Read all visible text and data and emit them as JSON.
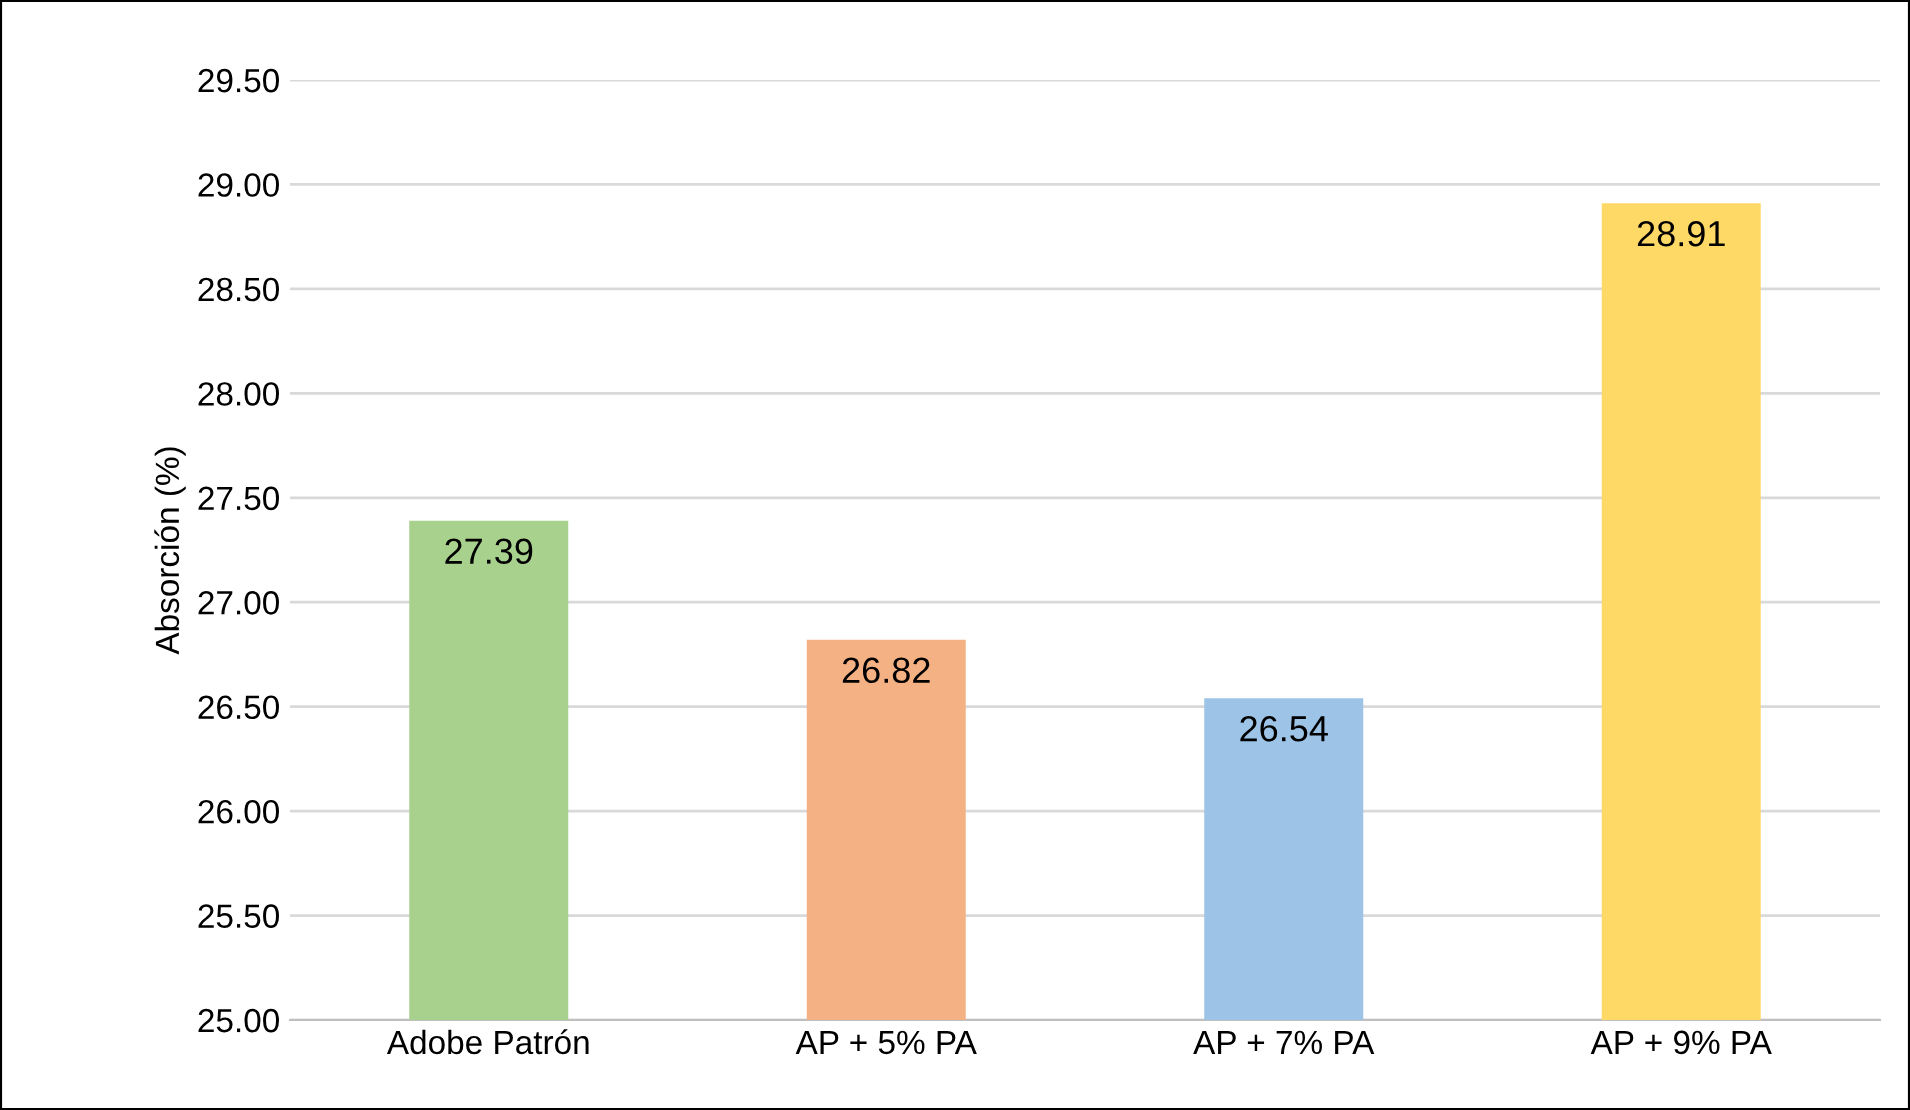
{
  "chart_data": {
    "type": "bar",
    "ylabel": "Absorción (%)",
    "categories": [
      "Adobe Patrón",
      "AP + 5% PA",
      "AP + 7% PA",
      "AP + 9% PA"
    ],
    "values": [
      27.39,
      26.82,
      26.54,
      28.91
    ],
    "colors": [
      "#a9d18e",
      "#f4b183",
      "#9dc3e6",
      "#ffd966"
    ],
    "ylim": [
      25,
      29.5
    ],
    "yticks": [
      {
        "value": 25,
        "label": "25.00"
      },
      {
        "value": 25.5,
        "label": "25.50"
      },
      {
        "value": 26,
        "label": "26.00"
      },
      {
        "value": 26.5,
        "label": "26.50"
      },
      {
        "value": 27,
        "label": "27.00"
      },
      {
        "value": 27.5,
        "label": "27.50"
      },
      {
        "value": 28,
        "label": "28.00"
      },
      {
        "value": 28.5,
        "label": "28.50"
      },
      {
        "value": 29,
        "label": "29.00"
      },
      {
        "value": 29.5,
        "label": "29.50"
      }
    ],
    "grid": "y",
    "data_labels": true
  }
}
